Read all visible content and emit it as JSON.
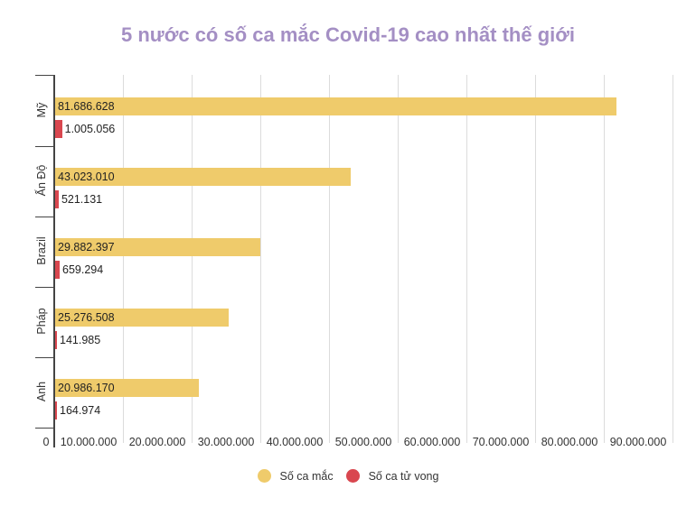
{
  "title": "5 nước có số ca mắc Covid-19 cao nhất thế giới",
  "colors": {
    "cases": "#efcb6b",
    "deaths": "#d9474f",
    "title": "#a48fc4"
  },
  "legend": [
    {
      "label": "Số ca mắc",
      "color": "#efcb6b"
    },
    {
      "label": "Số ca tử vong",
      "color": "#d9474f"
    }
  ],
  "x_ticks": [
    "0",
    "10.000.000",
    "20.000.000",
    "30.000.000",
    "40.000.000",
    "50.000.000",
    "60.000.000",
    "70.000.000",
    "80.000.000",
    "90.000.000"
  ],
  "countries": [
    {
      "name": "Mỹ",
      "cases_label": "81.686.628",
      "deaths_label": "1.005.056"
    },
    {
      "name": "Ấn Độ",
      "cases_label": "43.023.010",
      "deaths_label": "521.131"
    },
    {
      "name": "Brazil",
      "cases_label": "29.882.397",
      "deaths_label": "659.294"
    },
    {
      "name": "Pháp",
      "cases_label": "25.276.508",
      "deaths_label": "141.985"
    },
    {
      "name": "Anh",
      "cases_label": "20.986.170",
      "deaths_label": "164.974"
    }
  ],
  "chart_data": {
    "type": "bar",
    "orientation": "horizontal",
    "title": "5 nước có số ca mắc Covid-19 cao nhất thế giới",
    "categories": [
      "Mỹ",
      "Ấn Độ",
      "Brazil",
      "Pháp",
      "Anh"
    ],
    "series": [
      {
        "name": "Số ca mắc",
        "color": "#efcb6b",
        "values": [
          81686628,
          43023010,
          29882397,
          25276508,
          20986170
        ]
      },
      {
        "name": "Số ca tử vong",
        "color": "#d9474f",
        "values": [
          1005056,
          521131,
          659294,
          141985,
          164974
        ]
      }
    ],
    "xlabel": "",
    "ylabel": "",
    "xlim": [
      0,
      90000000
    ],
    "x_tick_values": [
      0,
      10000000,
      20000000,
      30000000,
      40000000,
      50000000,
      60000000,
      70000000,
      80000000,
      90000000
    ],
    "grid": true,
    "legend_position": "bottom",
    "data_labels": true
  }
}
